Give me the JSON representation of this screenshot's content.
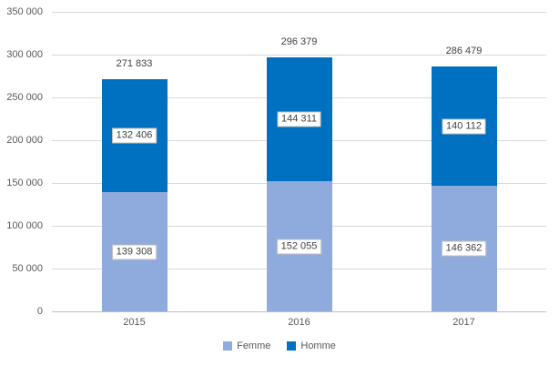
{
  "chart_data": {
    "type": "bar",
    "stacked": true,
    "title": "",
    "xlabel": "",
    "ylabel": "",
    "categories": [
      "2015",
      "2016",
      "2017"
    ],
    "series": [
      {
        "name": "Femme",
        "color": "#8FAADC",
        "values": [
          139308,
          152055,
          146362
        ],
        "labels": [
          "139 308",
          "152 055",
          "146 362"
        ]
      },
      {
        "name": "Homme",
        "color": "#0070C0",
        "values": [
          132406,
          144311,
          140112
        ],
        "labels": [
          "132 406",
          "144 311",
          "140 112"
        ]
      }
    ],
    "totals": [
      271833,
      296379,
      286479
    ],
    "total_labels": [
      "271 833",
      "296 379",
      "286 479"
    ],
    "ylim": [
      0,
      350000
    ],
    "ytick_step": 50000,
    "ytick_labels": [
      "0",
      "50 000",
      "100 000",
      "150 000",
      "200 000",
      "250 000",
      "300 000",
      "350 000"
    ],
    "grid": true,
    "legend_position": "bottom"
  },
  "colors": {
    "background": "#FFFFFF",
    "gridline": "#D9D9D9",
    "axis_line": "#BFBFBF",
    "tick_text": "#595959",
    "label_text": "#404040",
    "label_box_border": "#BFBFBF",
    "label_box_fill": "#FFFFFF",
    "femme": "#8FAADC",
    "homme": "#0070C0"
  }
}
